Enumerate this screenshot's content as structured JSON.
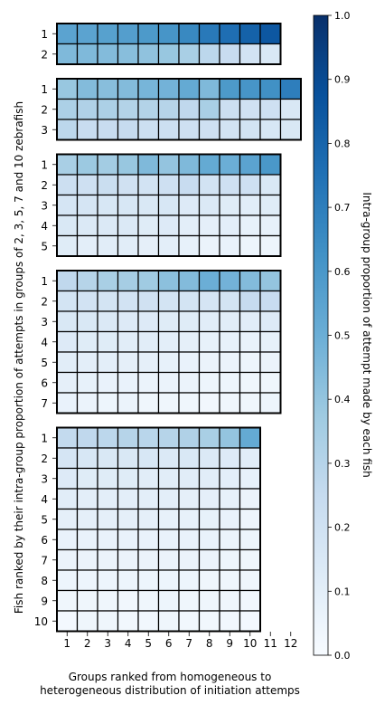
{
  "chart_data": {
    "type": "heatmap",
    "xlabel_lines": [
      "Groups ranked from homogeneous to",
      "heterogeneous distribution of initiation attemps"
    ],
    "ylabel": "Fish ranked by their intra-group proportion of attempts in groups of 2, 3, 5, 7 and 10 zebrafish",
    "colorbar": {
      "label": "Intra-group proportion of attempt made by each fish",
      "min": 0.0,
      "max": 1.0,
      "ticks": [
        "0.0",
        "0.1",
        "0.2",
        "0.3",
        "0.4",
        "0.5",
        "0.6",
        "0.7",
        "0.8",
        "0.9",
        "1.0"
      ],
      "colors": [
        "#f7fbff",
        "#deebf7",
        "#c6dbef",
        "#9ecae1",
        "#6baed6",
        "#4292c6",
        "#2171b5",
        "#08519c",
        "#08306b"
      ]
    },
    "x_ticks": [
      "1",
      "2",
      "3",
      "4",
      "5",
      "6",
      "7",
      "8",
      "9",
      "10",
      "11",
      "12"
    ],
    "panels": [
      {
        "group_size": 2,
        "row_labels": [
          "1",
          "2"
        ],
        "values": [
          [
            0.55,
            0.55,
            0.56,
            0.57,
            0.59,
            0.61,
            0.66,
            0.72,
            0.76,
            0.81,
            0.85
          ],
          [
            0.45,
            0.45,
            0.44,
            0.43,
            0.41,
            0.39,
            0.34,
            0.28,
            0.24,
            0.19,
            0.15
          ]
        ]
      },
      {
        "group_size": 3,
        "row_labels": [
          "1",
          "2",
          "3"
        ],
        "values": [
          [
            0.39,
            0.44,
            0.43,
            0.44,
            0.47,
            0.48,
            0.52,
            0.45,
            0.59,
            0.61,
            0.63,
            0.7
          ],
          [
            0.33,
            0.32,
            0.33,
            0.31,
            0.31,
            0.3,
            0.27,
            0.34,
            0.22,
            0.2,
            0.21,
            0.15
          ],
          [
            0.28,
            0.24,
            0.24,
            0.25,
            0.22,
            0.22,
            0.21,
            0.21,
            0.19,
            0.19,
            0.16,
            0.15
          ]
        ]
      },
      {
        "group_size": 5,
        "row_labels": [
          "1",
          "2",
          "3",
          "4",
          "5"
        ],
        "values": [
          [
            0.34,
            0.38,
            0.36,
            0.39,
            0.45,
            0.4,
            0.45,
            0.52,
            0.5,
            0.55,
            0.6
          ],
          [
            0.22,
            0.21,
            0.23,
            0.2,
            0.19,
            0.21,
            0.24,
            0.19,
            0.21,
            0.21,
            0.15
          ],
          [
            0.17,
            0.17,
            0.16,
            0.16,
            0.15,
            0.16,
            0.13,
            0.14,
            0.12,
            0.11,
            0.12
          ],
          [
            0.15,
            0.14,
            0.14,
            0.14,
            0.12,
            0.13,
            0.1,
            0.09,
            0.1,
            0.08,
            0.08
          ],
          [
            0.12,
            0.1,
            0.11,
            0.11,
            0.09,
            0.1,
            0.08,
            0.06,
            0.07,
            0.05,
            0.05
          ]
        ]
      },
      {
        "group_size": 7,
        "row_labels": [
          "1",
          "2",
          "3",
          "4",
          "5",
          "6",
          "7"
        ],
        "values": [
          [
            0.27,
            0.3,
            0.34,
            0.35,
            0.37,
            0.42,
            0.44,
            0.5,
            0.48,
            0.44,
            0.4
          ],
          [
            0.18,
            0.19,
            0.18,
            0.19,
            0.2,
            0.18,
            0.18,
            0.17,
            0.18,
            0.25,
            0.24
          ],
          [
            0.15,
            0.15,
            0.14,
            0.13,
            0.13,
            0.12,
            0.12,
            0.11,
            0.11,
            0.11,
            0.13
          ],
          [
            0.13,
            0.12,
            0.12,
            0.11,
            0.11,
            0.1,
            0.09,
            0.08,
            0.08,
            0.07,
            0.08
          ],
          [
            0.11,
            0.1,
            0.1,
            0.09,
            0.09,
            0.08,
            0.07,
            0.06,
            0.06,
            0.05,
            0.06
          ],
          [
            0.09,
            0.08,
            0.07,
            0.07,
            0.06,
            0.06,
            0.06,
            0.05,
            0.05,
            0.04,
            0.04
          ],
          [
            0.07,
            0.06,
            0.05,
            0.06,
            0.04,
            0.04,
            0.04,
            0.03,
            0.04,
            0.04,
            0.05
          ]
        ]
      },
      {
        "group_size": 10,
        "row_labels": [
          "1",
          "2",
          "3",
          "4",
          "5",
          "6",
          "7",
          "8",
          "9",
          "10"
        ],
        "values": [
          [
            0.26,
            0.27,
            0.28,
            0.3,
            0.29,
            0.3,
            0.32,
            0.34,
            0.4,
            0.52
          ],
          [
            0.17,
            0.16,
            0.15,
            0.15,
            0.16,
            0.14,
            0.15,
            0.14,
            0.13,
            0.11
          ],
          [
            0.13,
            0.12,
            0.12,
            0.12,
            0.11,
            0.11,
            0.11,
            0.11,
            0.1,
            0.08
          ],
          [
            0.11,
            0.1,
            0.1,
            0.1,
            0.1,
            0.1,
            0.09,
            0.09,
            0.08,
            0.06
          ],
          [
            0.09,
            0.09,
            0.09,
            0.09,
            0.09,
            0.08,
            0.08,
            0.08,
            0.07,
            0.05
          ],
          [
            0.07,
            0.07,
            0.07,
            0.07,
            0.07,
            0.07,
            0.07,
            0.07,
            0.06,
            0.05
          ],
          [
            0.06,
            0.06,
            0.06,
            0.06,
            0.06,
            0.06,
            0.06,
            0.06,
            0.05,
            0.04
          ],
          [
            0.05,
            0.05,
            0.05,
            0.05,
            0.05,
            0.05,
            0.05,
            0.04,
            0.04,
            0.04
          ],
          [
            0.04,
            0.04,
            0.04,
            0.03,
            0.04,
            0.05,
            0.04,
            0.04,
            0.04,
            0.03
          ],
          [
            0.02,
            0.04,
            0.04,
            0.03,
            0.03,
            0.04,
            0.03,
            0.03,
            0.03,
            0.02
          ]
        ]
      }
    ]
  }
}
